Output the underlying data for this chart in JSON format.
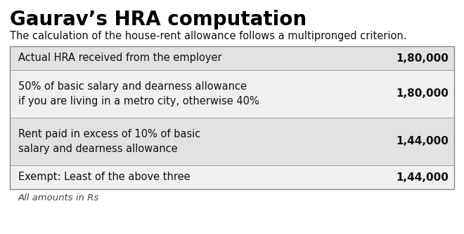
{
  "title": "Gaurav’s HRA computation",
  "subtitle": "The calculation of the house-rent allowance follows a multipronged criterion.",
  "rows": [
    {
      "label": "Actual HRA received from the employer",
      "label_lines": [
        "Actual HRA received from the employer"
      ],
      "value": "1,80,000",
      "bg": "#e2e2e2"
    },
    {
      "label": "50% of basic salary and dearness allowance\nif you are living in a metro city, otherwise 40%",
      "label_lines": [
        "50% of basic salary and dearness allowance",
        "if you are living in a metro city, otherwise 40%"
      ],
      "value": "1,80,000",
      "bg": "#f0f0f0"
    },
    {
      "label": "Rent paid in excess of 10% of basic\nsalary and dearness allowance",
      "label_lines": [
        "Rent paid in excess of 10% of basic",
        "salary and dearness allowance"
      ],
      "value": "1,44,000",
      "bg": "#e2e2e2"
    },
    {
      "label": "Exempt: Least of the above three",
      "label_lines": [
        "Exempt: Least of the above three"
      ],
      "value": "1,44,000",
      "bg": "#f0f0f0"
    }
  ],
  "footnote": "All amounts in Rs",
  "bg_color": "#ffffff",
  "border_color": "#999999",
  "title_fontsize": 20,
  "subtitle_fontsize": 10.5,
  "row_label_fontsize": 10.5,
  "row_value_fontsize": 11,
  "footnote_fontsize": 9.5
}
